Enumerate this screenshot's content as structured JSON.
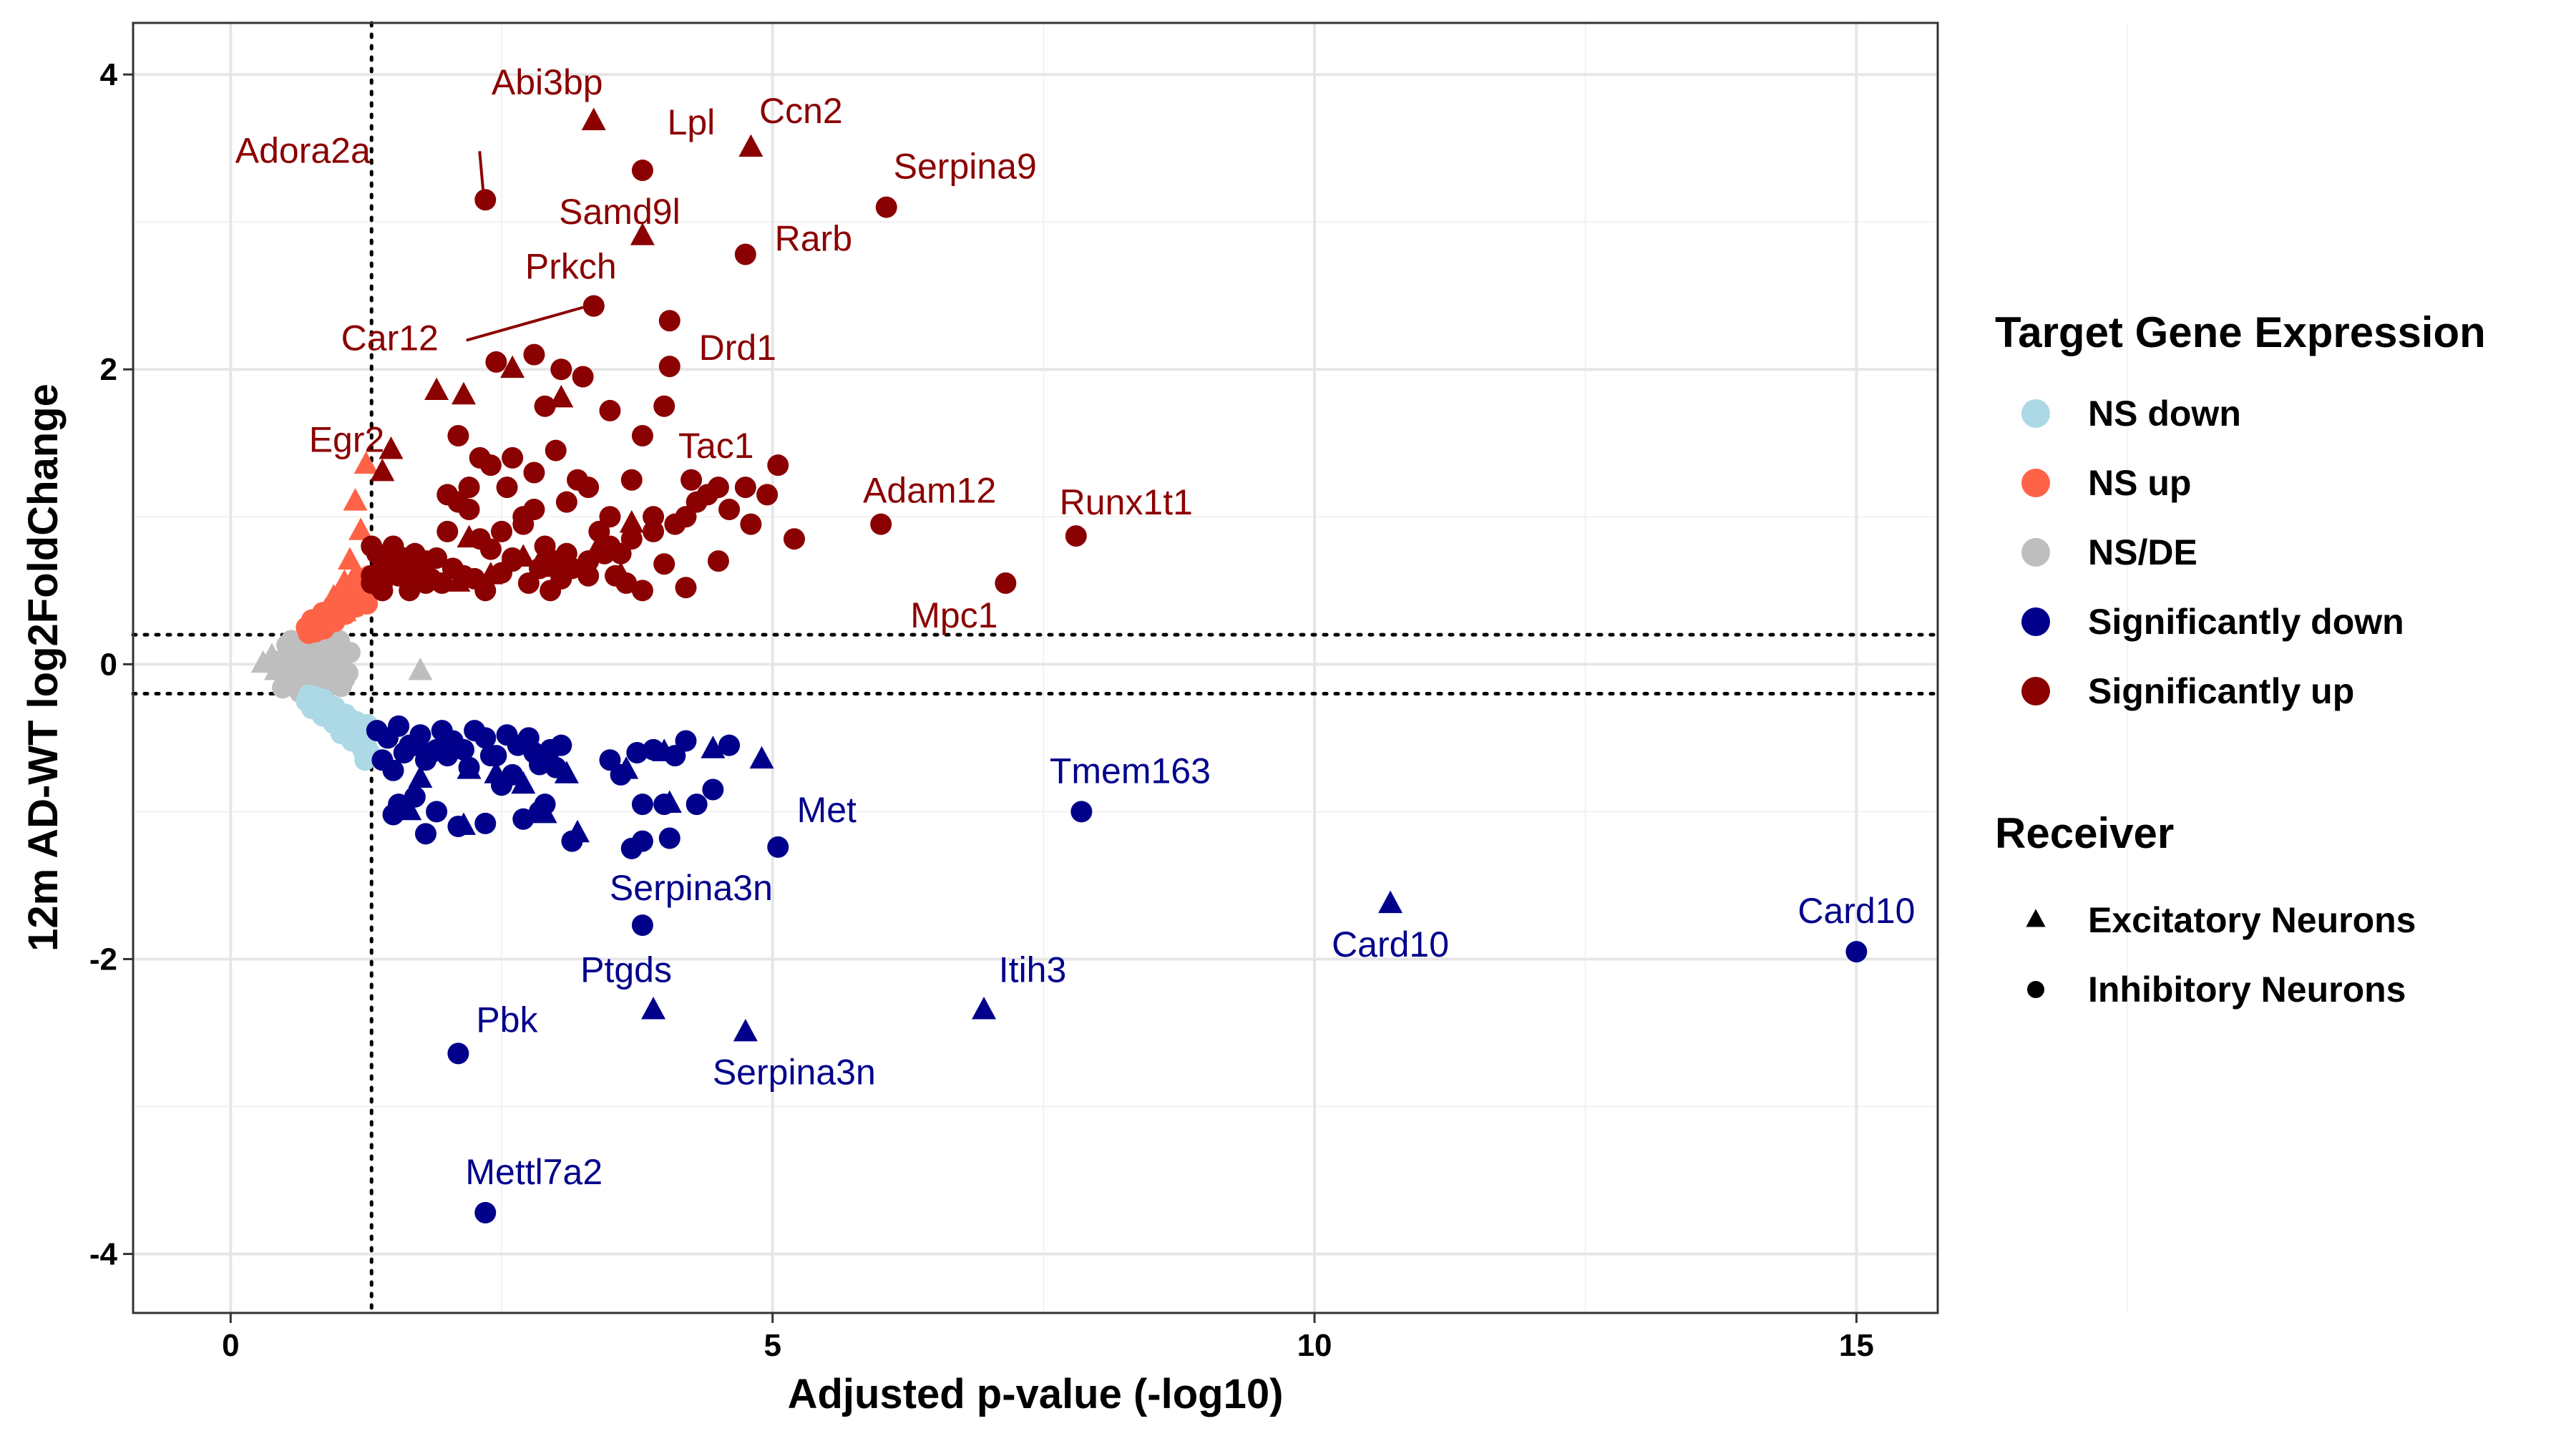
{
  "chart_data": {
    "type": "scatter",
    "xlabel": "Adjusted p-value (-log10)",
    "ylabel": "12m AD-WT log2FoldChange",
    "xlim": [
      -0.9,
      15.75
    ],
    "ylim": [
      -4.4,
      4.35
    ],
    "xticks": [
      0,
      5,
      10,
      15
    ],
    "yticks": [
      -4,
      -2,
      0,
      2,
      4
    ],
    "grid": true,
    "thresholds": {
      "x": 1.3,
      "y": [
        0.2,
        -0.2
      ]
    },
    "colors": {
      "NS down": "#add8e6",
      "NS up": "#ff6347",
      "NS/DE": "#bebebe",
      "Significantly down": "#00008b",
      "Significantly up": "#8b0000"
    },
    "legend": {
      "position": "right",
      "color_title": "Target Gene Expression",
      "color_entries": [
        "NS down",
        "NS up",
        "NS/DE",
        "Significantly down",
        "Significantly up"
      ],
      "shape_title": "Receiver",
      "shape_entries": [
        {
          "label": "Excitatory Neurons",
          "shape": "triangle"
        },
        {
          "label": "Inhibitory Neurons",
          "shape": "circle"
        }
      ]
    },
    "labeled_points": [
      {
        "label": "Abi3bp",
        "x": 3.35,
        "y": 3.68,
        "shape": "triangle",
        "group": "Significantly up"
      },
      {
        "label": "Adora2a",
        "x": 2.35,
        "y": 3.15,
        "shape": "circle",
        "group": "Significantly up"
      },
      {
        "label": "Lpl",
        "x": 3.8,
        "y": 3.35,
        "shape": "circle",
        "group": "Significantly up"
      },
      {
        "label": "Ccn2",
        "x": 4.8,
        "y": 3.5,
        "shape": "triangle",
        "group": "Significantly up"
      },
      {
        "label": "Serpina9",
        "x": 6.05,
        "y": 3.1,
        "shape": "circle",
        "group": "Significantly up"
      },
      {
        "label": "Samd9l",
        "x": 3.8,
        "y": 2.9,
        "shape": "triangle",
        "group": "Significantly up"
      },
      {
        "label": "Rarb",
        "x": 4.75,
        "y": 2.78,
        "shape": "circle",
        "group": "Significantly up"
      },
      {
        "label": "Prkch",
        "x": 3.35,
        "y": 2.43,
        "shape": "circle",
        "group": "Significantly up"
      },
      {
        "label": "Car12",
        "x": 3.35,
        "y": 2.43,
        "shape": "circle",
        "group": "Significantly up"
      },
      {
        "label": "Drd1",
        "x": 4.05,
        "y": 2.33,
        "shape": "circle",
        "group": "Significantly up"
      },
      {
        "label": "Tac1",
        "x": 4.05,
        "y": 2.02,
        "shape": "circle",
        "group": "Significantly up"
      },
      {
        "label": "Egr2",
        "x": 1.48,
        "y": 1.45,
        "shape": "triangle",
        "group": "Significantly up"
      },
      {
        "label": "Adam12",
        "x": 6.0,
        "y": 0.95,
        "shape": "circle",
        "group": "Significantly up"
      },
      {
        "label": "Runx1t1",
        "x": 7.8,
        "y": 0.87,
        "shape": "circle",
        "group": "Significantly up"
      },
      {
        "label": "Mpc1",
        "x": 7.15,
        "y": 0.55,
        "shape": "circle",
        "group": "Significantly up"
      },
      {
        "label": "Tmem163",
        "x": 7.85,
        "y": -1.0,
        "shape": "circle",
        "group": "Significantly down"
      },
      {
        "label": "Met",
        "x": 5.05,
        "y": -1.24,
        "shape": "circle",
        "group": "Significantly down"
      },
      {
        "label": "Serpina3n",
        "x": 3.8,
        "y": -1.77,
        "shape": "circle",
        "group": "Significantly down"
      },
      {
        "label": "Card10",
        "x": 10.7,
        "y": -1.63,
        "shape": "triangle",
        "group": "Significantly down"
      },
      {
        "label": "Card10",
        "x": 15.0,
        "y": -1.95,
        "shape": "circle",
        "group": "Significantly down"
      },
      {
        "label": "Itih3",
        "x": 6.95,
        "y": -2.35,
        "shape": "triangle",
        "group": "Significantly down"
      },
      {
        "label": "Ptgds",
        "x": 3.9,
        "y": -2.35,
        "shape": "triangle",
        "group": "Significantly down"
      },
      {
        "label": "Serpina3n",
        "x": 4.75,
        "y": -2.5,
        "shape": "triangle",
        "group": "Significantly down"
      },
      {
        "label": "Pbk",
        "x": 2.1,
        "y": -2.64,
        "shape": "circle",
        "group": "Significantly down"
      },
      {
        "label": "Mettl7a2",
        "x": 2.35,
        "y": -3.72,
        "shape": "circle",
        "group": "Significantly down"
      }
    ],
    "points": [
      {
        "group": "Significantly up",
        "shape": "circle",
        "x": [
          2.45,
          2.8,
          2.9,
          3.05,
          3.25,
          3.5,
          3.8,
          4.0,
          4.25,
          4.4,
          4.75,
          4.95,
          5.05,
          1.35,
          1.5,
          1.6,
          1.7,
          1.8,
          1.9,
          2.0,
          2.1,
          2.2,
          2.3,
          2.4,
          2.5,
          2.6,
          2.7,
          2.8,
          2.9,
          3.0,
          3.1,
          3.2,
          3.3,
          3.4,
          3.5,
          3.6,
          3.7,
          3.9,
          4.1,
          4.3,
          4.6,
          4.8,
          5.2,
          1.4,
          1.55,
          1.65,
          1.75,
          1.85,
          1.95,
          2.05,
          2.15,
          2.25,
          2.35,
          2.5,
          2.6,
          2.75,
          2.85,
          2.95,
          3.05,
          3.15,
          3.3,
          3.45,
          3.55,
          3.65,
          3.8,
          4.0,
          4.2,
          4.5,
          1.35,
          1.45,
          1.6,
          1.7,
          1.8,
          2.0,
          2.2,
          2.4,
          2.6,
          2.8,
          3.0,
          3.1,
          3.3,
          3.5,
          3.7,
          3.9,
          4.2,
          4.5,
          1.3,
          1.4,
          1.5,
          1.3,
          1.4,
          1.3,
          2.1,
          2.3,
          2.55,
          2.7
        ],
        "y": [
          2.05,
          2.1,
          1.75,
          2.0,
          1.95,
          1.72,
          1.55,
          1.75,
          1.25,
          1.15,
          1.2,
          1.15,
          1.35,
          0.75,
          0.8,
          0.65,
          0.75,
          0.7,
          0.72,
          0.9,
          1.1,
          1.05,
          0.85,
          0.78,
          0.9,
          0.72,
          0.95,
          1.05,
          0.8,
          0.7,
          0.75,
          1.25,
          0.6,
          0.9,
          0.8,
          0.75,
          0.85,
          1.0,
          0.95,
          1.1,
          1.05,
          0.95,
          0.85,
          0.55,
          0.6,
          0.5,
          0.62,
          0.58,
          0.55,
          0.65,
          0.6,
          0.58,
          0.5,
          0.62,
          0.7,
          0.55,
          0.65,
          0.5,
          0.58,
          0.65,
          0.7,
          0.75,
          0.6,
          0.55,
          0.5,
          0.68,
          0.52,
          0.7,
          0.6,
          0.68,
          0.72,
          0.6,
          0.55,
          1.15,
          1.2,
          1.35,
          1.4,
          1.3,
          1.45,
          1.1,
          1.2,
          1.0,
          1.25,
          0.9,
          1.0,
          1.2,
          0.55,
          0.65,
          0.7,
          0.8,
          0.5,
          0.6,
          1.55,
          1.4,
          1.2,
          1.0
        ]
      },
      {
        "group": "Significantly up",
        "shape": "triangle",
        "x": [
          1.9,
          2.15,
          2.6,
          3.05,
          1.35,
          1.6,
          2.1,
          2.4,
          2.7,
          3.0,
          3.4,
          3.7,
          1.4,
          2.2,
          2.9,
          3.6
        ],
        "y": [
          1.85,
          1.82,
          2.0,
          1.8,
          0.62,
          0.7,
          0.55,
          0.6,
          0.72,
          0.65,
          0.8,
          0.95,
          1.3,
          0.85,
          0.75,
          0.6
        ]
      },
      {
        "group": "NS up",
        "shape": "triangle",
        "x": [
          1.15,
          1.25,
          1.1,
          1.2,
          1.05,
          0.95,
          1.15,
          1.05
        ],
        "y": [
          1.1,
          1.35,
          0.7,
          0.9,
          0.55,
          0.45,
          0.6,
          0.35
        ]
      },
      {
        "group": "NS up",
        "shape": "circle",
        "x": [
          0.7,
          0.75,
          0.8,
          0.85,
          0.9,
          0.95,
          1.0,
          1.05,
          1.1,
          1.15,
          1.2,
          1.25,
          0.78,
          0.88,
          0.98,
          1.08,
          1.18,
          1.28,
          0.82,
          0.92,
          1.02,
          1.12,
          1.22,
          0.72,
          0.86,
          0.96,
          1.06,
          1.16,
          1.26
        ],
        "y": [
          0.25,
          0.3,
          0.28,
          0.35,
          0.32,
          0.4,
          0.38,
          0.42,
          0.45,
          0.5,
          0.48,
          0.55,
          0.22,
          0.27,
          0.33,
          0.36,
          0.44,
          0.6,
          0.31,
          0.37,
          0.47,
          0.52,
          0.58,
          0.21,
          0.24,
          0.29,
          0.34,
          0.39,
          0.41
        ]
      },
      {
        "group": "NS/DE",
        "shape": "circle",
        "x": [
          0.45,
          0.5,
          0.55,
          0.6,
          0.65,
          0.7,
          0.75,
          0.8,
          0.85,
          0.9,
          0.95,
          1.0,
          1.05,
          1.1,
          0.52,
          0.62,
          0.72,
          0.82,
          0.92,
          1.02,
          0.58,
          0.68,
          0.78,
          0.88,
          0.98,
          1.08,
          0.48,
          0.66,
          0.86,
          1.0,
          0.74,
          0.94,
          0.56,
          0.7,
          0.84,
          0.9,
          0.76,
          0.64
        ],
        "y": [
          0.02,
          -0.05,
          0.08,
          -0.02,
          0.1,
          0.0,
          0.12,
          -0.08,
          0.05,
          -0.12,
          0.15,
          0.02,
          -0.1,
          0.08,
          0.13,
          -0.14,
          0.17,
          0.1,
          -0.04,
          -0.15,
          -0.11,
          0.06,
          0.18,
          -0.17,
          0.09,
          -0.06,
          -0.16,
          -0.07,
          0.19,
          0.16,
          -0.13,
          0.11,
          0.16,
          0.19,
          -0.18,
          0.04,
          0.03,
          -0.19
        ]
      },
      {
        "group": "NS/DE",
        "shape": "triangle",
        "x": [
          0.3,
          0.38,
          0.42,
          0.55,
          0.62,
          1.75
        ],
        "y": [
          0.0,
          0.05,
          -0.05,
          0.1,
          -0.08,
          -0.05
        ]
      },
      {
        "group": "NS down",
        "shape": "circle",
        "x": [
          0.7,
          0.75,
          0.8,
          0.85,
          0.9,
          0.95,
          1.0,
          1.05,
          1.1,
          1.15,
          1.2,
          1.25,
          0.78,
          0.88,
          0.98,
          1.08,
          1.18,
          1.28,
          0.82,
          0.92,
          1.02,
          1.12,
          1.22,
          0.72,
          0.86,
          0.96,
          1.06,
          1.16,
          1.26,
          1.24
        ],
        "y": [
          -0.25,
          -0.3,
          -0.28,
          -0.35,
          -0.32,
          -0.4,
          -0.38,
          -0.42,
          -0.45,
          -0.5,
          -0.48,
          -0.55,
          -0.22,
          -0.27,
          -0.33,
          -0.36,
          -0.44,
          -0.6,
          -0.31,
          -0.37,
          -0.47,
          -0.52,
          -0.58,
          -0.21,
          -0.24,
          -0.29,
          -0.34,
          -0.39,
          -0.41,
          -0.65
        ]
      },
      {
        "group": "Significantly down",
        "shape": "circle",
        "x": [
          1.35,
          1.45,
          1.55,
          1.65,
          1.75,
          1.85,
          1.95,
          2.05,
          2.15,
          2.25,
          2.35,
          2.45,
          2.55,
          2.65,
          2.75,
          2.85,
          2.95,
          3.05,
          1.4,
          1.5,
          1.6,
          1.7,
          1.8,
          1.9,
          2.0,
          2.2,
          2.4,
          2.6,
          2.8,
          3.0,
          1.5,
          1.7,
          1.9,
          2.1,
          2.5,
          2.7,
          2.9,
          3.15,
          3.5,
          3.6,
          3.75,
          3.8,
          3.9,
          4.0,
          4.2,
          4.45,
          4.6,
          3.8,
          4.05,
          3.7,
          4.1,
          4.3,
          1.55,
          1.8,
          2.35,
          2.85
        ],
        "y": [
          -0.45,
          -0.5,
          -0.42,
          -0.55,
          -0.48,
          -0.6,
          -0.45,
          -0.52,
          -0.58,
          -0.45,
          -0.5,
          -0.62,
          -0.48,
          -0.55,
          -0.5,
          -0.68,
          -0.58,
          -0.55,
          -0.65,
          -0.72,
          -0.6,
          -0.55,
          -0.65,
          -0.58,
          -0.62,
          -0.7,
          -0.62,
          -0.75,
          -0.6,
          -0.7,
          -1.02,
          -0.9,
          -1.0,
          -1.1,
          -0.82,
          -1.05,
          -0.95,
          -1.2,
          -0.65,
          -0.75,
          -0.6,
          -0.95,
          -0.58,
          -0.95,
          -0.52,
          -0.85,
          -0.55,
          -1.2,
          -1.18,
          -1.25,
          -0.62,
          -0.95,
          -0.95,
          -1.15,
          -1.08,
          -1.0
        ]
      },
      {
        "group": "Significantly down",
        "shape": "triangle",
        "x": [
          1.75,
          2.2,
          2.45,
          2.7,
          3.1,
          3.65,
          4.0,
          4.45,
          4.9,
          1.65,
          2.15,
          2.9,
          3.2,
          4.05
        ],
        "y": [
          -0.78,
          -0.72,
          -0.75,
          -0.82,
          -0.75,
          -0.72,
          -0.6,
          -0.58,
          -0.65,
          -1.0,
          -1.1,
          -1.02,
          -1.15,
          -0.95
        ]
      }
    ]
  }
}
